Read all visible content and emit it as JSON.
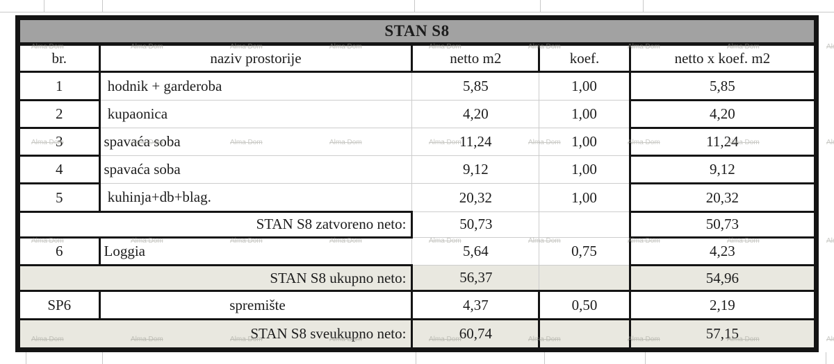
{
  "title": "STAN S8",
  "watermark_text": "Alma Dom",
  "columns": [
    "br.",
    "naziv prostorije",
    "netto m2",
    "koef.",
    "netto x koef. m2"
  ],
  "rows": [
    {
      "type": "data",
      "br": "1",
      "name": " hodnik + garderoba",
      "netto": "5,85",
      "koef": "1,00",
      "total": "5,85"
    },
    {
      "type": "data",
      "br": "2",
      "name": " kupaonica",
      "netto": "4,20",
      "koef": "1,00",
      "total": "4,20"
    },
    {
      "type": "data",
      "br": "3",
      "name": "spavaća soba",
      "netto": "11,24",
      "koef": "1,00",
      "total": "11,24"
    },
    {
      "type": "data",
      "br": "4",
      "name": "spavaća soba",
      "netto": "9,12",
      "koef": "1,00",
      "total": "9,12"
    },
    {
      "type": "data",
      "br": "5",
      "name": " kuhinja+db+blag.",
      "netto": "20,32",
      "koef": "1,00",
      "total": "20,32"
    },
    {
      "type": "subtotal",
      "label": "STAN S8 zatvoreno neto:",
      "netto": "50,73",
      "koef": "",
      "total": "50,73",
      "shaded": false
    },
    {
      "type": "data",
      "br": "6",
      "name": "Loggia",
      "netto": "5,64",
      "koef": "0,75",
      "total": "4,23"
    },
    {
      "type": "subtotal",
      "label": "STAN S8 ukupno neto:",
      "netto": "56,37",
      "koef": "",
      "total": "54,96",
      "shaded": true
    },
    {
      "type": "data",
      "br": "SP6",
      "name": "spremište",
      "netto": "4,37",
      "koef": "0,50",
      "total": "2,19",
      "boxed": true
    },
    {
      "type": "subtotal",
      "label": "STAN S8 sveukupno neto:",
      "netto": "60,74",
      "koef": "",
      "total": "57,15",
      "shaded": true,
      "last": true
    }
  ],
  "colors": {
    "title_bg": "#a2a2a2",
    "border_black": "#141414",
    "shaded_row_bg": "#e9e8e0",
    "grid_light": "#c8c8c8"
  }
}
